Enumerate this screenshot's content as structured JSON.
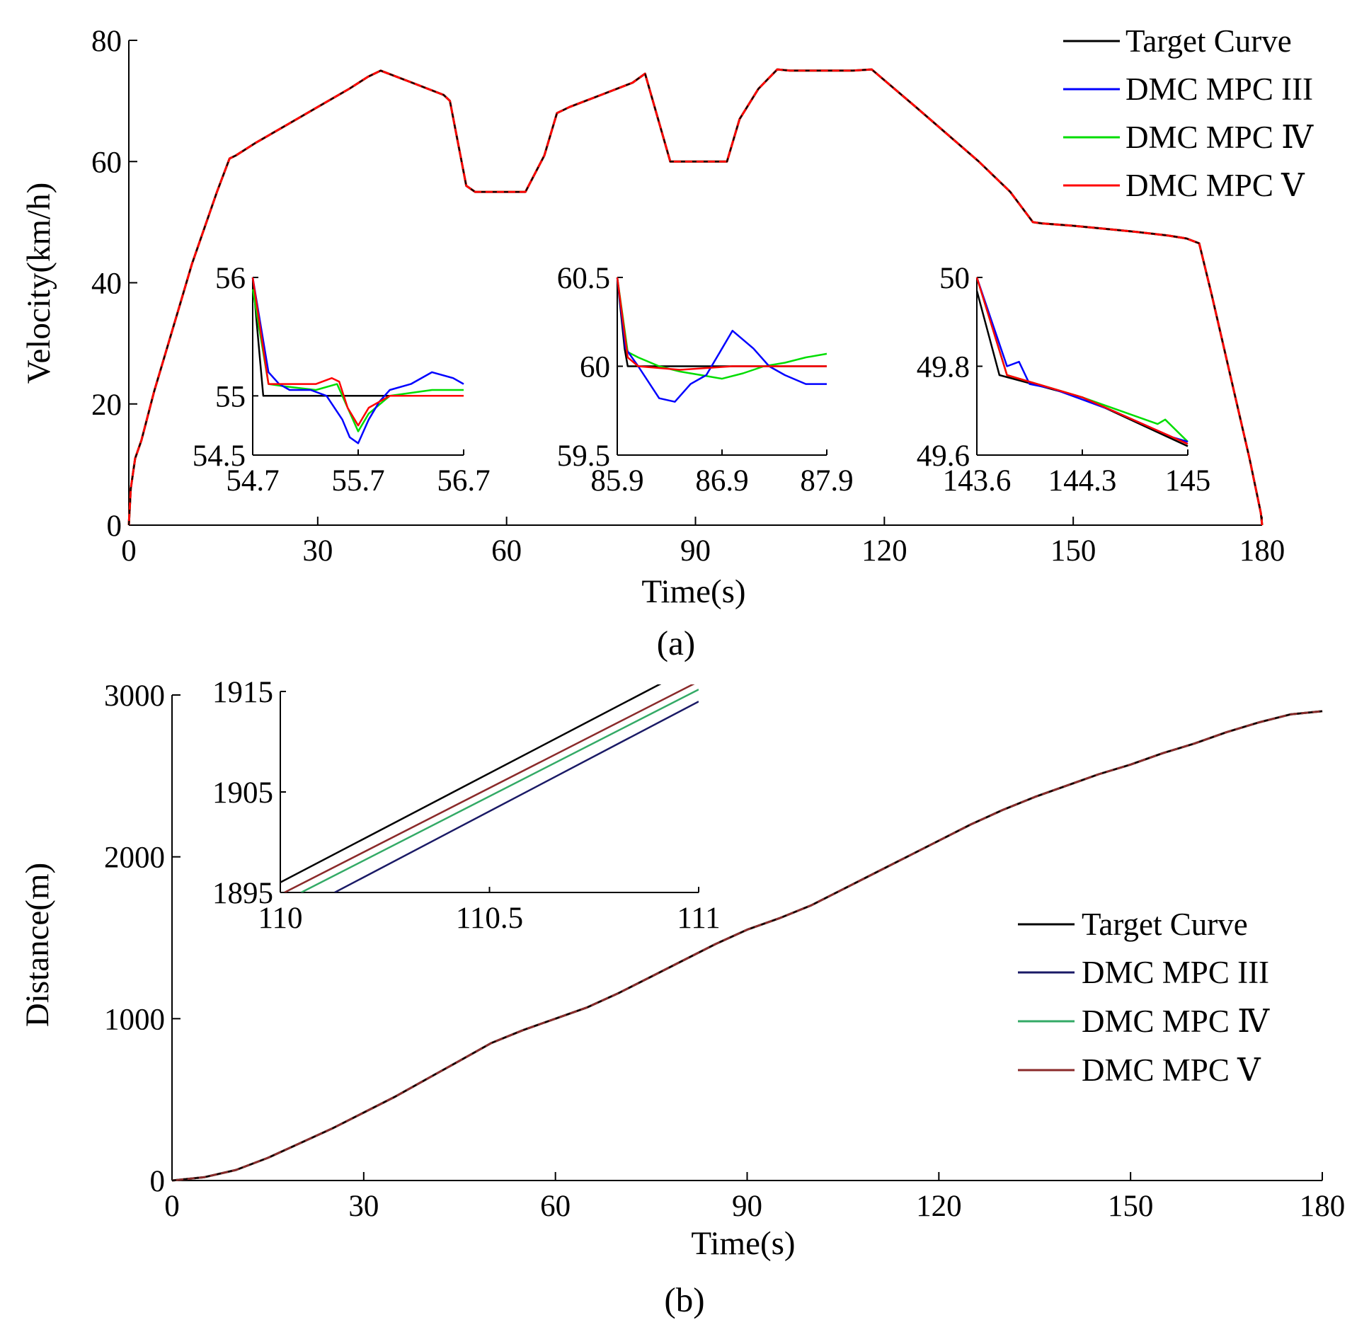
{
  "colors": {
    "target": "#000000",
    "mpc3_a": "#0000ff",
    "mpc4_a": "#00dd00",
    "mpc5_a": "#ff0000",
    "mpc3_b": "#1a1a66",
    "mpc4_b": "#33aa66",
    "mpc5_b": "#8a2a2a"
  },
  "chart_data": [
    {
      "panel": "(a)",
      "type": "line",
      "xlabel": "Time(s)",
      "ylabel": "Velocity(km/h)",
      "xlim": [
        0,
        180
      ],
      "ylim": [
        0,
        80
      ],
      "xticks": [
        "0",
        "30",
        "60",
        "90",
        "120",
        "150",
        "180"
      ],
      "yticks": [
        "0",
        "20",
        "40",
        "60",
        "80"
      ],
      "legend": [
        "Target Curve",
        "DMC MPC III",
        "DMC MPC Ⅳ",
        "DMC MPC Ⅴ"
      ],
      "legend_position": "top-right",
      "series": [
        {
          "name": "Target Curve",
          "x": [
            0,
            0.3,
            1,
            2,
            3,
            4,
            6,
            8,
            10,
            12,
            14,
            16,
            17,
            20,
            25,
            30,
            35,
            38,
            40,
            45,
            50,
            51,
            53.6,
            55,
            60,
            63,
            66,
            68,
            70,
            75,
            80,
            82,
            86,
            88,
            92,
            95,
            97,
            100,
            103,
            105,
            110,
            115,
            118,
            125,
            135,
            140,
            143.6,
            145,
            150,
            155,
            160,
            165,
            168,
            170,
            172,
            174,
            176,
            178,
            179.2,
            179.8,
            180
          ],
          "y": [
            0,
            6,
            11,
            14,
            18,
            22,
            29,
            36,
            43,
            49,
            55,
            60.5,
            61,
            63,
            66,
            69,
            72,
            74,
            75,
            73,
            71,
            70,
            56,
            55,
            55,
            55,
            61,
            68,
            69,
            71,
            73,
            74.5,
            60,
            60,
            60,
            60,
            67,
            72,
            75.2,
            75,
            75,
            75,
            75.2,
            69,
            60,
            55,
            50,
            49.8,
            49.4,
            48.9,
            48.4,
            47.8,
            47.3,
            46.5,
            38,
            29,
            20,
            11,
            5,
            2,
            0
          ]
        },
        {
          "name": "DMC MPC III",
          "same_as": "Target Curve"
        },
        {
          "name": "DMC MPC Ⅳ",
          "same_as": "Target Curve"
        },
        {
          "name": "DMC MPC Ⅴ",
          "same_as": "Target Curve"
        }
      ],
      "insets": [
        {
          "xlim": [
            54.7,
            56.7
          ],
          "ylim": [
            54.5,
            56
          ],
          "xticks": [
            "54.7",
            "55.7",
            "56.7"
          ],
          "yticks": [
            "54.5",
            "55",
            "56"
          ],
          "series": [
            {
              "name": "Target Curve",
              "x": [
                54.7,
                54.75,
                54.8,
                55,
                55.5,
                56.7
              ],
              "y": [
                56,
                55.5,
                55,
                55,
                55,
                55
              ]
            },
            {
              "name": "DMC MPC III",
              "x": [
                54.7,
                54.85,
                54.95,
                55.05,
                55.25,
                55.4,
                55.55,
                55.62,
                55.7,
                55.8,
                55.9,
                56.0,
                56.2,
                56.4,
                56.6,
                56.7
              ],
              "y": [
                56,
                55.2,
                55.1,
                55.05,
                55.05,
                55.0,
                54.8,
                54.65,
                54.6,
                54.8,
                54.95,
                55.05,
                55.1,
                55.2,
                55.15,
                55.1
              ]
            },
            {
              "name": "DMC MPC Ⅳ",
              "x": [
                54.7,
                54.85,
                55.0,
                55.3,
                55.5,
                55.6,
                55.7,
                55.8,
                56.0,
                56.4,
                56.7
              ],
              "y": [
                55.9,
                55.1,
                55.08,
                55.05,
                55.1,
                54.9,
                54.7,
                54.85,
                55.0,
                55.05,
                55.05
              ]
            },
            {
              "name": "DMC MPC Ⅴ",
              "x": [
                54.7,
                54.85,
                55.0,
                55.3,
                55.45,
                55.52,
                55.6,
                55.7,
                55.8,
                56.0,
                56.7
              ],
              "y": [
                56,
                55.1,
                55.1,
                55.1,
                55.15,
                55.12,
                54.9,
                54.75,
                54.9,
                55.0,
                55.0
              ]
            }
          ]
        },
        {
          "xlim": [
            85.9,
            87.9
          ],
          "ylim": [
            59.5,
            60.5
          ],
          "xticks": [
            "85.9",
            "86.9",
            "87.9"
          ],
          "yticks": [
            "59.5",
            "60",
            "60.5"
          ],
          "series": [
            {
              "name": "Target Curve",
              "x": [
                85.9,
                85.97,
                86.0,
                86.1,
                87.9
              ],
              "y": [
                60.5,
                60.1,
                60,
                60,
                60
              ]
            },
            {
              "name": "DMC MPC III",
              "x": [
                85.9,
                85.98,
                86.1,
                86.3,
                86.45,
                86.6,
                86.75,
                86.85,
                87.0,
                87.2,
                87.35,
                87.5,
                87.7,
                87.9
              ],
              "y": [
                60.5,
                60.1,
                60.0,
                59.82,
                59.8,
                59.9,
                59.95,
                60.05,
                60.2,
                60.1,
                60.0,
                59.95,
                59.9,
                59.9
              ]
            },
            {
              "name": "DMC MPC Ⅳ",
              "x": [
                85.9,
                86.0,
                86.1,
                86.3,
                86.5,
                86.7,
                86.9,
                87.1,
                87.3,
                87.5,
                87.7,
                87.9
              ],
              "y": [
                60.5,
                60.08,
                60.05,
                60.0,
                59.97,
                59.95,
                59.93,
                59.96,
                60.0,
                60.02,
                60.05,
                60.07
              ]
            },
            {
              "name": "DMC MPC Ⅴ",
              "x": [
                85.9,
                86.0,
                86.1,
                86.5,
                87.0,
                87.5,
                87.9
              ],
              "y": [
                60.5,
                60.05,
                60.0,
                59.98,
                60.0,
                60.0,
                60.0
              ]
            }
          ]
        },
        {
          "xlim": [
            143.6,
            145
          ],
          "ylim": [
            49.6,
            50
          ],
          "xticks": [
            "143.6",
            "144.3",
            "145"
          ],
          "yticks": [
            "49.6",
            "49.8",
            "50"
          ],
          "series": [
            {
              "name": "Target Curve",
              "x": [
                143.6,
                143.75,
                144.3,
                145
              ],
              "y": [
                49.97,
                49.78,
                49.73,
                49.62
              ]
            },
            {
              "name": "DMC MPC III",
              "x": [
                143.6,
                143.8,
                143.88,
                143.95,
                144.1,
                144.5,
                144.9,
                145
              ],
              "y": [
                50,
                49.8,
                49.81,
                49.76,
                49.75,
                49.7,
                49.64,
                49.63
              ]
            },
            {
              "name": "DMC MPC Ⅳ",
              "x": [
                143.6,
                143.8,
                144.3,
                144.8,
                144.85,
                145
              ],
              "y": [
                50,
                49.78,
                49.73,
                49.67,
                49.68,
                49.63
              ]
            },
            {
              "name": "DMC MPC Ⅴ",
              "x": [
                143.6,
                143.8,
                144.3,
                145
              ],
              "y": [
                50,
                49.78,
                49.73,
                49.625
              ]
            }
          ]
        }
      ]
    },
    {
      "panel": "(b)",
      "type": "line",
      "xlabel": "Time(s)",
      "ylabel": "Distance(m)",
      "xlim": [
        0,
        180
      ],
      "ylim": [
        0,
        3000
      ],
      "xticks": [
        "0",
        "30",
        "60",
        "90",
        "120",
        "150",
        "180"
      ],
      "yticks": [
        "0",
        "1000",
        "2000",
        "3000"
      ],
      "legend": [
        "Target Curve",
        "DMC MPC III",
        "DMC MPC Ⅳ",
        "DMC MPC Ⅴ"
      ],
      "legend_position": "center-right",
      "series": [
        {
          "name": "Target Curve",
          "x": [
            0,
            5,
            10,
            15,
            20,
            25,
            30,
            35,
            40,
            45,
            50,
            55,
            60,
            65,
            70,
            75,
            80,
            85,
            90,
            95,
            100,
            105,
            110,
            115,
            120,
            125,
            130,
            135,
            140,
            145,
            150,
            155,
            160,
            165,
            170,
            175,
            180
          ],
          "y": [
            0,
            20,
            65,
            140,
            230,
            320,
            420,
            520,
            630,
            740,
            850,
            930,
            1000,
            1070,
            1160,
            1260,
            1360,
            1460,
            1550,
            1620,
            1700,
            1800,
            1900,
            2000,
            2100,
            2200,
            2290,
            2370,
            2440,
            2510,
            2570,
            2640,
            2700,
            2770,
            2830,
            2880,
            2900
          ]
        },
        {
          "name": "DMC MPC III",
          "same_as": "Target Curve"
        },
        {
          "name": "DMC MPC Ⅳ",
          "same_as": "Target Curve"
        },
        {
          "name": "DMC MPC Ⅴ",
          "same_as": "Target Curve"
        }
      ],
      "inset": {
        "xlim": [
          110,
          111
        ],
        "ylim": [
          1895,
          1915
        ],
        "xticks": [
          "110",
          "110.5",
          "111"
        ],
        "yticks": [
          "1895",
          "1905",
          "1915"
        ],
        "series": [
          {
            "name": "Target Curve",
            "x": [
              110,
              110.92
            ],
            "y": [
              1896,
              1916
            ]
          },
          {
            "name": "DMC MPC III",
            "x": [
              110.13,
              111
            ],
            "y": [
              1895,
              1914
            ]
          },
          {
            "name": "DMC MPC Ⅳ",
            "x": [
              110.05,
              111
            ],
            "y": [
              1895,
              1915.2
            ]
          },
          {
            "name": "DMC MPC Ⅴ",
            "x": [
              110.01,
              111
            ],
            "y": [
              1895,
              1916
            ]
          }
        ]
      }
    }
  ],
  "captions": {
    "a": "(a)",
    "b": "(b)"
  }
}
